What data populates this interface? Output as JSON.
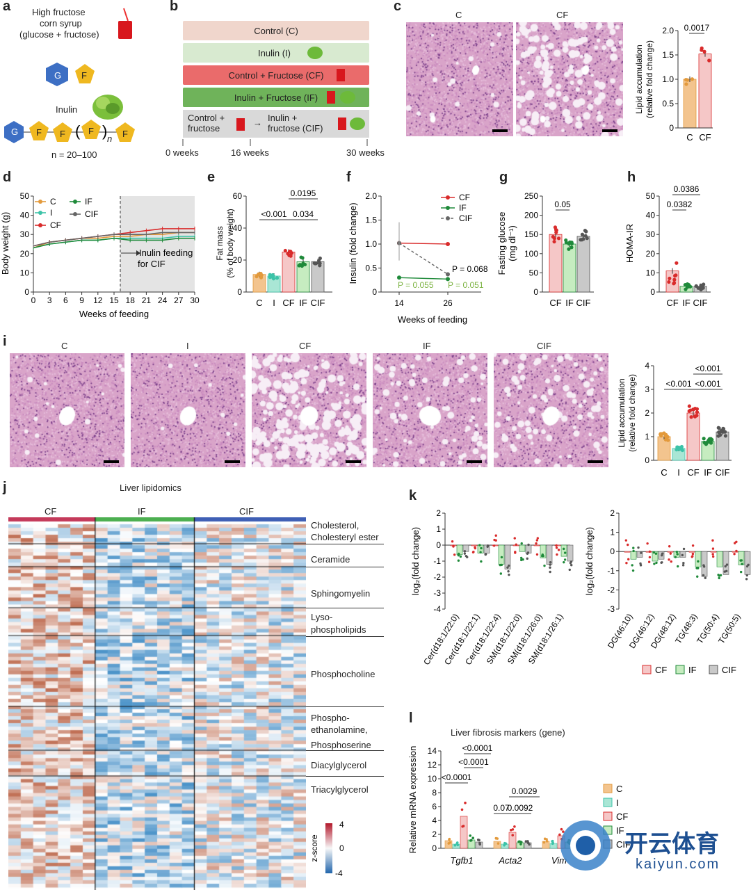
{
  "panels": {
    "a": "a",
    "b": "b",
    "c": "c",
    "d": "d",
    "e": "e",
    "f": "f",
    "g": "g",
    "h": "h",
    "i": "i",
    "j": "j",
    "k": "k",
    "l": "l"
  },
  "a": {
    "syrup_title": "High fructose",
    "syrup_line2": "corn syrup",
    "syrup_line3": "(glucose + fructose)",
    "g": "G",
    "f": "F",
    "inulin": "Inulin",
    "n_sub": "n",
    "n_range": "n = 20–100"
  },
  "b": {
    "groups": [
      "Control (C)",
      "Inulin (I)",
      "Control + Fructose (CF)",
      "Inulin + Fructose (IF)"
    ],
    "switch_from": "Control +\nfructose",
    "switch_to": "Inulin +\nfructose (CIF)",
    "arrow": "→",
    "weeks": [
      "0 weeks",
      "16 weeks",
      "30 weeks"
    ],
    "colors": {
      "control": "#f0d6cc",
      "inulin": "#d8ead0",
      "cf": "#ea6b6b",
      "if": "#6fb35a",
      "switch": "#d9d9d9"
    }
  },
  "c": {
    "labels": [
      "C",
      "CF"
    ],
    "ylabel": "Lipid accumulation\n(relative fold change)",
    "yticks": [
      "2.0",
      "1.5",
      "1.0",
      "0.5",
      "0"
    ],
    "p": "0.0017",
    "chart_data": {
      "type": "bar",
      "categories": [
        "C",
        "CF"
      ],
      "values": [
        1.0,
        1.52
      ],
      "ylim": [
        0,
        2
      ]
    }
  },
  "d": {
    "xlabel": "Weeks of feeding",
    "ylabel": "Body weight (g)",
    "legend": [
      "C",
      "I",
      "CF",
      "IF",
      "CIF"
    ],
    "annot": "Inulin feeding\nfor CIF",
    "xticks": [
      "0",
      "3",
      "6",
      "9",
      "12",
      "15",
      "18",
      "21",
      "24",
      "27",
      "30"
    ],
    "yticks": [
      "50",
      "40",
      "30",
      "20",
      "10",
      "0"
    ],
    "chart_data": {
      "type": "line",
      "x": [
        0,
        3,
        6,
        9,
        12,
        15,
        18,
        21,
        24,
        27,
        30
      ],
      "series": [
        {
          "name": "C",
          "values": [
            23,
            26,
            27,
            28,
            28,
            29,
            29,
            30,
            30,
            31,
            31
          ]
        },
        {
          "name": "I",
          "values": [
            23,
            25,
            26,
            27,
            27,
            28,
            28,
            28,
            28,
            29,
            29
          ]
        },
        {
          "name": "CF",
          "values": [
            24,
            26,
            27,
            28,
            29,
            30,
            31,
            32,
            33,
            33,
            33
          ]
        },
        {
          "name": "IF",
          "values": [
            23,
            25,
            26,
            27,
            27,
            28,
            27,
            27,
            27,
            28,
            28
          ]
        },
        {
          "name": "CIF",
          "values": [
            24,
            26,
            27,
            28,
            29,
            30,
            30,
            30,
            31,
            31,
            31
          ]
        }
      ],
      "ylim": [
        0,
        50
      ]
    }
  },
  "e": {
    "ylabel": "Fat mass\n(% of body weight)",
    "labels": [
      "C",
      "I",
      "CF",
      "IF",
      "CIF"
    ],
    "yticks": [
      "60",
      "40",
      "20",
      "0"
    ],
    "p1": "<0.001",
    "p2": "0.0195",
    "p3": "0.034",
    "chart_data": {
      "type": "bar",
      "categories": [
        "C",
        "I",
        "CF",
        "IF",
        "CIF"
      ],
      "values": [
        11,
        10,
        25,
        19,
        19
      ],
      "ylim": [
        0,
        60
      ]
    }
  },
  "f": {
    "ylabel": "Insulin (fold change)",
    "xlabel": "Weeks of feeding",
    "legend": [
      "CF",
      "IF",
      "CIF"
    ],
    "xticks": [
      "14",
      "26"
    ],
    "yticks": [
      "2.0",
      "1.5",
      "1.0",
      "0.5",
      "0"
    ],
    "p1": "P = 0.068",
    "p2": "P = 0.055",
    "p3": "P = 0.051",
    "chart_data": {
      "type": "line",
      "x": [
        14,
        26
      ],
      "series": [
        {
          "name": "CF",
          "values": [
            1.02,
            1.0
          ]
        },
        {
          "name": "IF",
          "values": [
            0.3,
            0.27
          ]
        },
        {
          "name": "CIF",
          "values": [
            1.02,
            0.37
          ]
        }
      ],
      "ylim": [
        0,
        2
      ]
    }
  },
  "g": {
    "ylabel": "Fasting glucose\n(mg dl⁻¹)",
    "labels": [
      "CF",
      "IF",
      "CIF"
    ],
    "yticks": [
      "250",
      "200",
      "150",
      "100",
      "50",
      "0"
    ],
    "p": "0.05",
    "chart_data": {
      "type": "bar",
      "categories": [
        "CF",
        "IF",
        "CIF"
      ],
      "values": [
        150,
        125,
        145
      ],
      "ylim": [
        0,
        250
      ]
    }
  },
  "h": {
    "ylabel": "HOMA-IR",
    "labels": [
      "CF",
      "IF",
      "CIF"
    ],
    "yticks": [
      "50",
      "40",
      "30",
      "20",
      "10",
      "0"
    ],
    "p1": "0.0386",
    "p2": "0.0382",
    "chart_data": {
      "type": "bar",
      "categories": [
        "CF",
        "IF",
        "CIF"
      ],
      "values": [
        11,
        3,
        3
      ],
      "ylim": [
        0,
        50
      ]
    }
  },
  "i": {
    "titles": [
      "C",
      "I",
      "CF",
      "IF",
      "CIF"
    ],
    "ylabel": "Lipid accumulation\n(relative fold change)",
    "labels": [
      "C",
      "I",
      "CF",
      "IF",
      "CIF"
    ],
    "yticks": [
      "4",
      "3",
      "2",
      "1",
      "0"
    ],
    "p1": "<0.001",
    "p2": "<0.001",
    "p3": "<0.001",
    "chart_data": {
      "type": "bar",
      "categories": [
        "C",
        "I",
        "CF",
        "IF",
        "CIF"
      ],
      "values": [
        1.0,
        0.5,
        2.0,
        0.8,
        1.2
      ],
      "ylim": [
        0,
        4
      ]
    }
  },
  "j": {
    "title": "Liver lipidomics",
    "groups": [
      "CF",
      "IF",
      "CIF"
    ],
    "classes": [
      "Cholesterol,",
      "Cholesteryl ester",
      "Ceramide",
      "Sphingomyelin",
      "Lyso-",
      "phospholipids",
      "Phosphocholine",
      "Phospho-",
      "ethanolamine,",
      "Phosphoserine",
      "Diacylglycerol",
      "Triacylglycerol"
    ],
    "zlabel": "z-score",
    "zticks": [
      "4",
      "0",
      "-4"
    ]
  },
  "k": {
    "ylabel": "log₂(fold change)",
    "left_x": [
      "Cer(d18:1/22:0)",
      "Cer(d18:1/22:1)",
      "Cer(d18:1/22:4)",
      "SM(d18:1/22:0)",
      "SM(d18:1/26:0)",
      "SM(d18:1/26:1)"
    ],
    "right_x": [
      "DG(46:10)",
      "DG(46:12)",
      "DG(48:12)",
      "TG(48:3)",
      "TG(50:4)",
      "TG(50:5)"
    ],
    "left_yticks": [
      "2",
      "1",
      "0",
      "-1",
      "-2",
      "-3",
      "-4"
    ],
    "right_yticks": [
      "2",
      "1",
      "0",
      "-1",
      "-2",
      "-3"
    ],
    "legend": [
      "CF",
      "IF",
      "CIF"
    ],
    "chart_data": [
      {
        "type": "bar",
        "categories": [
          "Cer(d18:1/22:0)",
          "Cer(d18:1/22:1)",
          "Cer(d18:1/22:4)",
          "SM(d18:1/22:0)",
          "SM(d18:1/26:0)",
          "SM(d18:1/26:1)"
        ],
        "series": [
          {
            "name": "CF",
            "values": [
              0,
              0,
              0,
              0,
              0,
              0
            ]
          },
          {
            "name": "IF",
            "values": [
              -0.6,
              -0.5,
              -1.2,
              -0.4,
              -0.8,
              -0.7
            ]
          },
          {
            "name": "CIF",
            "values": [
              -0.4,
              -0.5,
              -1.5,
              -0.5,
              -1.2,
              -1.0
            ]
          }
        ],
        "ylim": [
          -4,
          2
        ]
      },
      {
        "type": "bar",
        "categories": [
          "DG(46:10)",
          "DG(46:12)",
          "DG(48:12)",
          "TG(48:3)",
          "TG(50:4)",
          "TG(50:5)"
        ],
        "series": [
          {
            "name": "CF",
            "values": [
              0,
              0,
              0,
              0,
              0,
              0
            ]
          },
          {
            "name": "IF",
            "values": [
              -0.4,
              -0.5,
              -0.3,
              -0.8,
              -0.8,
              -0.7
            ]
          },
          {
            "name": "CIF",
            "values": [
              -0.3,
              -0.4,
              -0.3,
              -1.3,
              -1.2,
              -1.2
            ]
          }
        ],
        "ylim": [
          -3,
          2
        ]
      }
    ]
  },
  "l": {
    "title": "Liver fibrosis markers (gene)",
    "ylabel": "Relative mRNA expression",
    "genes": [
      "Tgfb1",
      "Acta2",
      "Vim"
    ],
    "yticks": [
      "14",
      "12",
      "10",
      "8",
      "6",
      "4",
      "2",
      "0"
    ],
    "pvals": [
      "<0.0001",
      "<0.0001",
      "<0.0001",
      "0.07",
      "0.0029",
      "0.0092"
    ],
    "legend": [
      "C",
      "I",
      "CF",
      "IF",
      "CIF"
    ],
    "chart_data": {
      "type": "bar",
      "categories": [
        "Tgfb1",
        "Acta2",
        "Vim"
      ],
      "series": [
        {
          "name": "C",
          "values": [
            1.1,
            1.0,
            1.0
          ]
        },
        {
          "name": "I",
          "values": [
            0.6,
            0.6,
            0.7
          ]
        },
        {
          "name": "CF",
          "values": [
            4.6,
            2.3,
            1.8
          ]
        },
        {
          "name": "IF",
          "values": [
            1.2,
            0.8,
            0.9
          ]
        },
        {
          "name": "CIF",
          "values": [
            0.9,
            0.8,
            0.9
          ]
        }
      ],
      "ylim": [
        0,
        14
      ]
    }
  },
  "watermark": {
    "brand": "开云体育",
    "url": "kaiyun.com"
  },
  "colors": {
    "C": "#f3c48e",
    "I": "#a9e6d5",
    "CF": "#f5c7c7",
    "IF": "#c6ecc0",
    "CIF": "#c9c9c9",
    "CFdot": "#d92b2b",
    "IFdot": "#1f8a3a",
    "CIFdot": "#555555",
    "Cdot": "#e39a3c",
    "Idot": "#3cc3a8",
    "pink": "#d9a4c9"
  }
}
